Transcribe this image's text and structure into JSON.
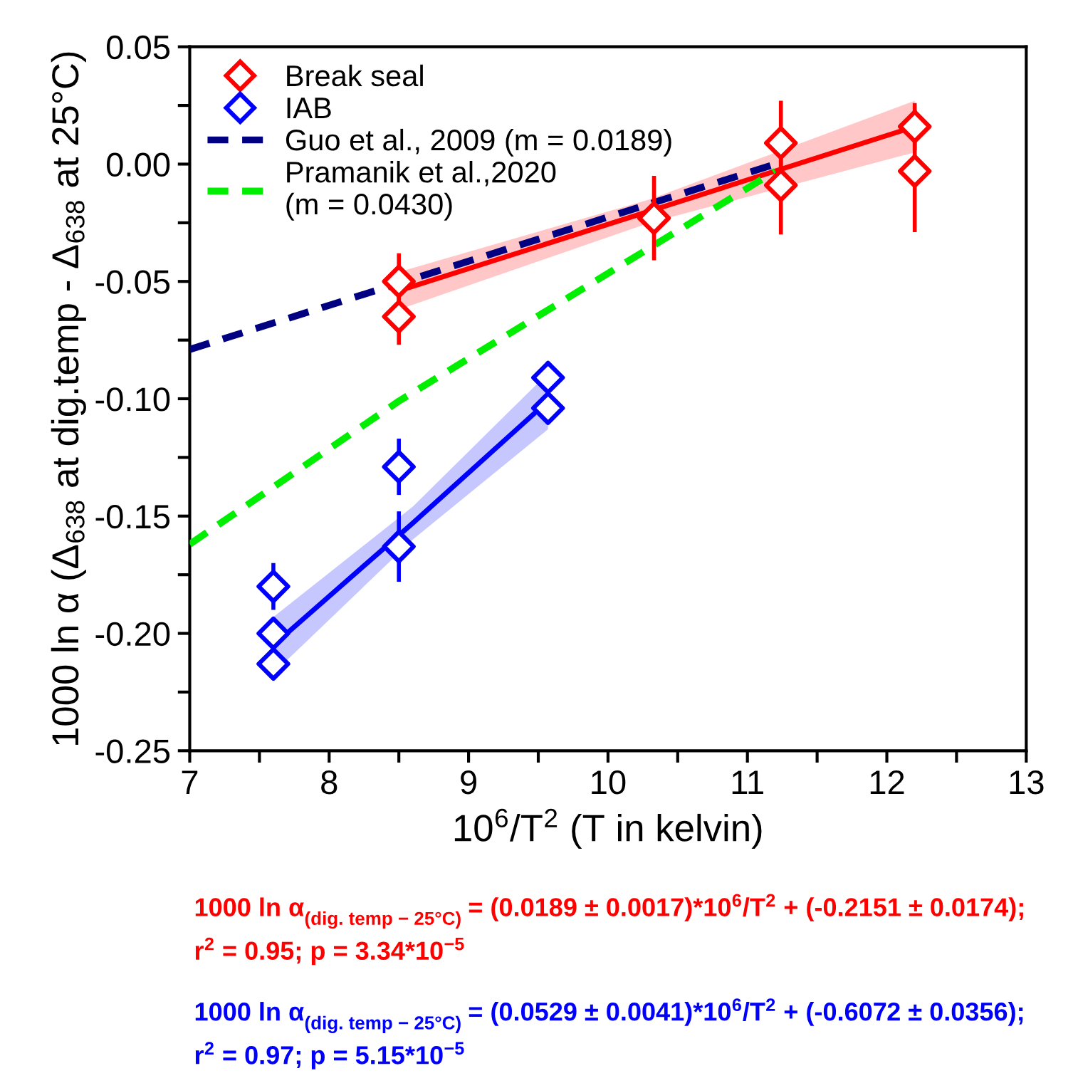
{
  "chart_data": {
    "type": "scatter",
    "xlabel": "10$^{6}$/T$^{2}$ (T in kelvin)",
    "ylabel": "1000 ln α (Δ$_{638}$ at dig.temp - Δ$_{638}$ at 25°C)",
    "xlim": [
      7,
      13
    ],
    "ylim": [
      -0.25,
      0.05
    ],
    "xticks": [
      7,
      {
        "value": 7.5,
        "label": null
      },
      8,
      {
        "value": 8.5,
        "label": null
      },
      9,
      {
        "value": 9.5,
        "label": null
      },
      10,
      {
        "value": 10.5,
        "label": null
      },
      11,
      {
        "value": 11.5,
        "label": null
      },
      12,
      {
        "value": 12.5,
        "label": null
      },
      13
    ],
    "yticks": [
      {
        "value": -0.25,
        "label": "-0.25"
      },
      {
        "value": -0.225,
        "label": null
      },
      {
        "value": -0.2,
        "label": "-0.20"
      },
      {
        "value": -0.175,
        "label": null
      },
      {
        "value": -0.15,
        "label": "-0.15"
      },
      {
        "value": -0.125,
        "label": null
      },
      {
        "value": -0.1,
        "label": "-0.10"
      },
      {
        "value": -0.075,
        "label": null
      },
      {
        "value": -0.05,
        "label": "-0.05"
      },
      {
        "value": -0.025,
        "label": null
      },
      {
        "value": 0,
        "label": "0.00"
      },
      {
        "value": 0.025,
        "label": null
      },
      {
        "value": 0.05,
        "label": "0.05"
      }
    ],
    "grid": false,
    "legend": "top left",
    "series": [
      {
        "name": "Break seal",
        "type": "scatter",
        "color": "#ff0000",
        "marker": "diamond",
        "x": [
          8.5,
          8.5,
          10.33,
          11.24,
          11.24,
          12.2,
          12.2
        ],
        "values": [
          -0.05,
          -0.065,
          -0.023,
          0.009,
          -0.009,
          0.016,
          -0.003
        ],
        "errors": [
          0.012,
          0.012,
          0.018,
          0.018,
          0.021,
          0.01,
          0.026
        ]
      },
      {
        "name": "IAB",
        "type": "scatter",
        "color": "#0000ff",
        "marker": "diamond",
        "x": [
          7.6,
          7.6,
          7.6,
          8.5,
          8.5,
          9.57,
          9.57
        ],
        "values": [
          -0.18,
          -0.2,
          -0.213,
          -0.129,
          -0.163,
          -0.091,
          -0.104
        ],
        "errors": [
          0.01,
          null,
          null,
          0.012,
          0.015,
          null,
          null
        ]
      },
      {
        "type": "line",
        "color": "#ff0000",
        "marker": "none",
        "line_style": "solid",
        "x": [
          8.5,
          10.3,
          12.2
        ],
        "values": [
          -0.054,
          -0.02,
          0.016
        ],
        "lower": [
          -0.062,
          -0.025,
          0.005
        ],
        "upper": [
          -0.046,
          -0.015,
          0.027
        ]
      },
      {
        "type": "line",
        "color": "#0000ff",
        "marker": "none",
        "line_style": "solid",
        "x": [
          7.6,
          8.6,
          9.57
        ],
        "values": [
          -0.205,
          -0.153,
          -0.101
        ],
        "lower": [
          -0.217,
          -0.16,
          -0.113
        ],
        "upper": [
          -0.193,
          -0.146,
          -0.089
        ]
      },
      {
        "name": "Guo et al., 2009 (m = 0.0189)",
        "type": "line",
        "color": "#000080",
        "marker": "none",
        "line_style": "dashed",
        "x": [
          7,
          11.2
        ],
        "values": [
          -0.079,
          0.0
        ]
      },
      {
        "name": "Pramanik et al.,2020\n(m = 0.0430)",
        "type": "line",
        "color": "#00ee00",
        "marker": "none",
        "line_style": "dashed",
        "x": [
          7,
          8.5,
          11.2
        ],
        "values": [
          -0.162,
          -0.101,
          -0.003
        ]
      }
    ],
    "annotations": [
      "1000 ln α$_{(dig. temp − 25°C)}$ = (0.0189 ± 0.0017)*10$^{6}$/T$^{2}$ + (-0.2151 ± 0.0174);",
      "r$^{2}$ = 0.95; p = 3.34*10$^{−5}$",
      "1000 ln α$_{(dig. temp − 25°C)}$ = (0.0529 ± 0.0041)*10$^{6}$/T$^{2}$ + (-0.6072 ± 0.0356);",
      "r$^{2}$ = 0.97; p = 5.15*10$^{−5}$"
    ]
  }
}
